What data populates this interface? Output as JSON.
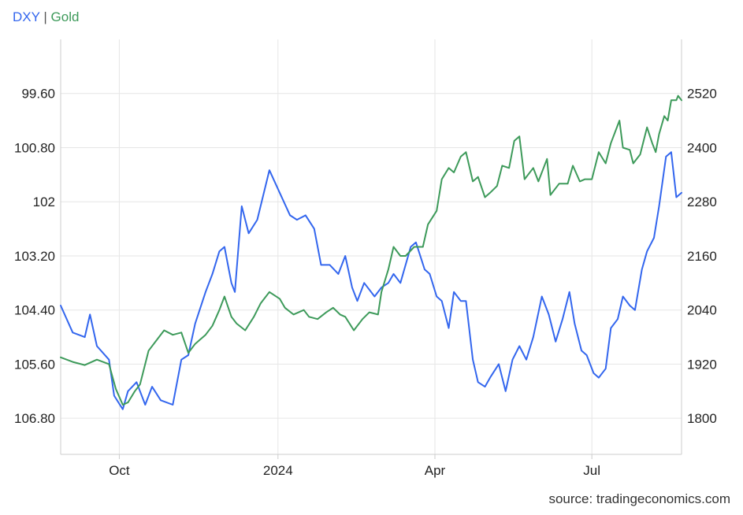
{
  "legend": {
    "dxy_label": "DXY",
    "separator": "|",
    "gold_label": "Gold"
  },
  "source": "source: tradingeconomics.com",
  "colors": {
    "dxy": "#3366ee",
    "gold": "#3d9a5a",
    "grid": "#e6e6e6",
    "axis": "#cccccc"
  },
  "chart_data": {
    "type": "line",
    "x_range": [
      "2023-08-28",
      "2024-08-22"
    ],
    "x_ticks": [
      {
        "date": "2023-10-01",
        "label": "Oct"
      },
      {
        "date": "2024-01-01",
        "label": "2024"
      },
      {
        "date": "2024-04-01",
        "label": "Apr"
      },
      {
        "date": "2024-07-01",
        "label": "Jul"
      }
    ],
    "y_left": {
      "inverted": true,
      "range": [
        98.4,
        107.6
      ],
      "ticks": [
        {
          "value": 99.6,
          "label": "99.60"
        },
        {
          "value": 100.8,
          "label": "100.80"
        },
        {
          "value": 102.0,
          "label": "102"
        },
        {
          "value": 103.2,
          "label": "103.20"
        },
        {
          "value": 104.4,
          "label": "104.40"
        },
        {
          "value": 105.6,
          "label": "105.60"
        },
        {
          "value": 106.8,
          "label": "106.80"
        }
      ]
    },
    "y_right": {
      "range": [
        1720,
        2640
      ],
      "ticks": [
        {
          "value": 2520,
          "label": "2520"
        },
        {
          "value": 2400,
          "label": "2400"
        },
        {
          "value": 2280,
          "label": "2280"
        },
        {
          "value": 2160,
          "label": "2160"
        },
        {
          "value": 2040,
          "label": "2040"
        },
        {
          "value": 1920,
          "label": "1920"
        },
        {
          "value": 1800,
          "label": "1800"
        }
      ]
    },
    "grid": true,
    "legend_position": "top-left",
    "series": [
      {
        "name": "DXY",
        "axis": "left",
        "points": [
          [
            "2023-08-28",
            104.3
          ],
          [
            "2023-09-04",
            104.9
          ],
          [
            "2023-09-11",
            105.0
          ],
          [
            "2023-09-14",
            104.5
          ],
          [
            "2023-09-18",
            105.2
          ],
          [
            "2023-09-25",
            105.5
          ],
          [
            "2023-09-28",
            106.3
          ],
          [
            "2023-10-03",
            106.6
          ],
          [
            "2023-10-06",
            106.2
          ],
          [
            "2023-10-11",
            106.0
          ],
          [
            "2023-10-16",
            106.5
          ],
          [
            "2023-10-20",
            106.1
          ],
          [
            "2023-10-25",
            106.4
          ],
          [
            "2023-11-01",
            106.5
          ],
          [
            "2023-11-06",
            105.5
          ],
          [
            "2023-11-10",
            105.4
          ],
          [
            "2023-11-14",
            104.7
          ],
          [
            "2023-11-20",
            104.0
          ],
          [
            "2023-11-24",
            103.6
          ],
          [
            "2023-11-28",
            103.1
          ],
          [
            "2023-12-01",
            103.0
          ],
          [
            "2023-12-05",
            103.8
          ],
          [
            "2023-12-07",
            104.0
          ],
          [
            "2023-12-11",
            102.1
          ],
          [
            "2023-12-15",
            102.7
          ],
          [
            "2023-12-20",
            102.4
          ],
          [
            "2023-12-27",
            101.3
          ],
          [
            "2024-01-02",
            101.8
          ],
          [
            "2024-01-08",
            102.3
          ],
          [
            "2024-01-12",
            102.4
          ],
          [
            "2024-01-17",
            102.3
          ],
          [
            "2024-01-22",
            102.6
          ],
          [
            "2024-01-26",
            103.4
          ],
          [
            "2024-01-31",
            103.4
          ],
          [
            "2024-02-05",
            103.6
          ],
          [
            "2024-02-09",
            103.2
          ],
          [
            "2024-02-13",
            103.9
          ],
          [
            "2024-02-16",
            104.2
          ],
          [
            "2024-02-20",
            103.8
          ],
          [
            "2024-02-26",
            104.1
          ],
          [
            "2024-03-01",
            103.9
          ],
          [
            "2024-03-05",
            103.8
          ],
          [
            "2024-03-08",
            103.6
          ],
          [
            "2024-03-12",
            103.8
          ],
          [
            "2024-03-18",
            103.0
          ],
          [
            "2024-03-21",
            102.9
          ],
          [
            "2024-03-26",
            103.5
          ],
          [
            "2024-03-29",
            103.6
          ],
          [
            "2024-04-02",
            104.1
          ],
          [
            "2024-04-05",
            104.2
          ],
          [
            "2024-04-09",
            104.8
          ],
          [
            "2024-04-12",
            104.0
          ],
          [
            "2024-04-16",
            104.2
          ],
          [
            "2024-04-19",
            104.2
          ],
          [
            "2024-04-23",
            105.5
          ],
          [
            "2024-04-26",
            106.0
          ],
          [
            "2024-04-30",
            106.1
          ],
          [
            "2024-05-03",
            105.9
          ],
          [
            "2024-05-08",
            105.6
          ],
          [
            "2024-05-12",
            106.2
          ],
          [
            "2024-05-16",
            105.5
          ],
          [
            "2024-05-20",
            105.2
          ],
          [
            "2024-05-24",
            105.5
          ],
          [
            "2024-05-28",
            105.0
          ],
          [
            "2024-06-02",
            104.1
          ],
          [
            "2024-06-06",
            104.5
          ],
          [
            "2024-06-10",
            105.1
          ],
          [
            "2024-06-14",
            104.6
          ],
          [
            "2024-06-18",
            104.0
          ],
          [
            "2024-06-21",
            104.7
          ],
          [
            "2024-06-25",
            105.3
          ],
          [
            "2024-06-28",
            105.4
          ],
          [
            "2024-07-02",
            105.8
          ],
          [
            "2024-07-05",
            105.9
          ],
          [
            "2024-07-09",
            105.7
          ],
          [
            "2024-07-12",
            104.8
          ],
          [
            "2024-07-16",
            104.6
          ],
          [
            "2024-07-19",
            104.1
          ],
          [
            "2024-07-23",
            104.3
          ],
          [
            "2024-07-26",
            104.4
          ],
          [
            "2024-07-30",
            103.5
          ],
          [
            "2024-08-02",
            103.1
          ],
          [
            "2024-08-06",
            102.8
          ],
          [
            "2024-08-09",
            102.1
          ],
          [
            "2024-08-13",
            101.0
          ],
          [
            "2024-08-16",
            100.9
          ],
          [
            "2024-08-19",
            101.9
          ],
          [
            "2024-08-22",
            101.8
          ]
        ]
      },
      {
        "name": "Gold",
        "axis": "right",
        "points": [
          [
            "2023-08-28",
            1935
          ],
          [
            "2023-09-04",
            1925
          ],
          [
            "2023-09-11",
            1918
          ],
          [
            "2023-09-18",
            1930
          ],
          [
            "2023-09-25",
            1920
          ],
          [
            "2023-09-29",
            1865
          ],
          [
            "2023-10-03",
            1830
          ],
          [
            "2023-10-06",
            1835
          ],
          [
            "2023-10-10",
            1860
          ],
          [
            "2023-10-13",
            1875
          ],
          [
            "2023-10-18",
            1950
          ],
          [
            "2023-10-23",
            1975
          ],
          [
            "2023-10-27",
            1995
          ],
          [
            "2023-11-01",
            1985
          ],
          [
            "2023-11-06",
            1990
          ],
          [
            "2023-11-10",
            1945
          ],
          [
            "2023-11-14",
            1965
          ],
          [
            "2023-11-20",
            1985
          ],
          [
            "2023-11-24",
            2005
          ],
          [
            "2023-11-28",
            2040
          ],
          [
            "2023-12-01",
            2070
          ],
          [
            "2023-12-05",
            2025
          ],
          [
            "2023-12-08",
            2010
          ],
          [
            "2023-12-13",
            1995
          ],
          [
            "2023-12-18",
            2025
          ],
          [
            "2023-12-22",
            2055
          ],
          [
            "2023-12-27",
            2080
          ],
          [
            "2024-01-02",
            2065
          ],
          [
            "2024-01-05",
            2045
          ],
          [
            "2024-01-10",
            2030
          ],
          [
            "2024-01-16",
            2040
          ],
          [
            "2024-01-19",
            2025
          ],
          [
            "2024-01-24",
            2020
          ],
          [
            "2024-01-29",
            2035
          ],
          [
            "2024-02-02",
            2045
          ],
          [
            "2024-02-06",
            2030
          ],
          [
            "2024-02-09",
            2025
          ],
          [
            "2024-02-14",
            1995
          ],
          [
            "2024-02-19",
            2020
          ],
          [
            "2024-02-23",
            2035
          ],
          [
            "2024-02-28",
            2030
          ],
          [
            "2024-03-01",
            2080
          ],
          [
            "2024-03-05",
            2130
          ],
          [
            "2024-03-08",
            2180
          ],
          [
            "2024-03-12",
            2160
          ],
          [
            "2024-03-15",
            2160
          ],
          [
            "2024-03-20",
            2180
          ],
          [
            "2024-03-25",
            2180
          ],
          [
            "2024-03-28",
            2230
          ],
          [
            "2024-04-02",
            2260
          ],
          [
            "2024-04-05",
            2330
          ],
          [
            "2024-04-09",
            2355
          ],
          [
            "2024-04-12",
            2345
          ],
          [
            "2024-04-16",
            2380
          ],
          [
            "2024-04-19",
            2390
          ],
          [
            "2024-04-23",
            2325
          ],
          [
            "2024-04-26",
            2335
          ],
          [
            "2024-04-30",
            2290
          ],
          [
            "2024-05-03",
            2300
          ],
          [
            "2024-05-07",
            2315
          ],
          [
            "2024-05-10",
            2360
          ],
          [
            "2024-05-14",
            2355
          ],
          [
            "2024-05-17",
            2415
          ],
          [
            "2024-05-20",
            2425
          ],
          [
            "2024-05-23",
            2330
          ],
          [
            "2024-05-28",
            2355
          ],
          [
            "2024-05-31",
            2325
          ],
          [
            "2024-06-05",
            2375
          ],
          [
            "2024-06-07",
            2295
          ],
          [
            "2024-06-12",
            2320
          ],
          [
            "2024-06-17",
            2320
          ],
          [
            "2024-06-20",
            2360
          ],
          [
            "2024-06-24",
            2325
          ],
          [
            "2024-06-27",
            2330
          ],
          [
            "2024-07-01",
            2330
          ],
          [
            "2024-07-05",
            2390
          ],
          [
            "2024-07-09",
            2365
          ],
          [
            "2024-07-12",
            2410
          ],
          [
            "2024-07-17",
            2460
          ],
          [
            "2024-07-19",
            2400
          ],
          [
            "2024-07-23",
            2395
          ],
          [
            "2024-07-25",
            2365
          ],
          [
            "2024-07-29",
            2385
          ],
          [
            "2024-08-02",
            2445
          ],
          [
            "2024-08-05",
            2410
          ],
          [
            "2024-08-07",
            2390
          ],
          [
            "2024-08-09",
            2430
          ],
          [
            "2024-08-12",
            2470
          ],
          [
            "2024-08-14",
            2460
          ],
          [
            "2024-08-16",
            2505
          ],
          [
            "2024-08-19",
            2505
          ],
          [
            "2024-08-20",
            2515
          ],
          [
            "2024-08-22",
            2505
          ]
        ]
      }
    ]
  }
}
